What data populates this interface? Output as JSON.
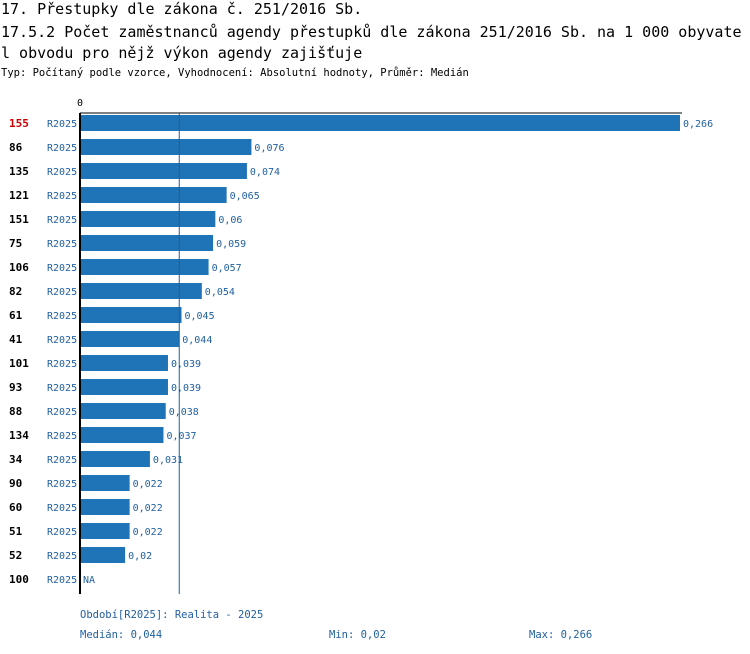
{
  "title_line1": "17. Přestupky dle zákona č. 251/2016 Sb.",
  "title_line2": "17.5.2 Počet zaměstnanců agendy přestupků dle zákona 251/2016 Sb. na 1 000 obyvatel obvodu pro nějž výkon agendy zajišťuje",
  "subtitle": "Typ: Počítaný podle vzorce, Vyhodnocení: Absolutní hodnoty, Průměr: Medián",
  "colors": {
    "bar": "#1f73b7",
    "highlight_label": "#cc0000",
    "series_label": "#1f5f9f",
    "median_line": "#1f5f9f",
    "axis": "#000000"
  },
  "chart_data": {
    "type": "bar",
    "orientation": "horizontal",
    "axis_zero_label": "0",
    "xlim": [
      0,
      0.266
    ],
    "highlight_category": "155",
    "median": 0.044,
    "categories": [
      "155",
      "86",
      "135",
      "121",
      "151",
      "75",
      "106",
      "82",
      "61",
      "41",
      "101",
      "93",
      "88",
      "134",
      "34",
      "90",
      "60",
      "51",
      "52",
      "100"
    ],
    "series": [
      {
        "name": "R2025",
        "values": [
          0.266,
          0.076,
          0.074,
          0.065,
          0.06,
          0.059,
          0.057,
          0.054,
          0.045,
          0.044,
          0.039,
          0.039,
          0.038,
          0.037,
          0.031,
          0.022,
          0.022,
          0.022,
          0.02,
          null
        ],
        "value_labels": [
          "0,266",
          "0,076",
          "0,074",
          "0,065",
          "0,06",
          "0,059",
          "0,057",
          "0,054",
          "0,045",
          "0,044",
          "0,039",
          "0,039",
          "0,038",
          "0,037",
          "0,031",
          "0,022",
          "0,022",
          "0,022",
          "0,02",
          "NA"
        ]
      }
    ]
  },
  "footer": {
    "period": "Období[R2025]: Realita - 2025",
    "median": "Medián: 0,044",
    "min": "Min: 0,02",
    "max": "Max: 0,266"
  }
}
